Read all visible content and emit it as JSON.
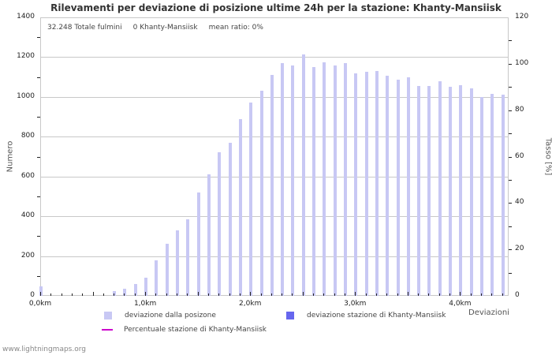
{
  "title": "Rilevamenti per deviazione di posizione ultime 24h per la stazione: Khanty-Mansiisk",
  "info": {
    "total": "32.248 Totale fulmini",
    "station": "0 Khanty-Mansiisk",
    "ratio": "mean ratio: 0%"
  },
  "axes": {
    "left_title": "Numero",
    "right_title": "Tasso [%]",
    "x_title": "Deviazioni",
    "left_ticks": [
      "0",
      "200",
      "400",
      "600",
      "800",
      "1000",
      "1200",
      "1400"
    ],
    "right_ticks": [
      "0",
      "20",
      "40",
      "60",
      "80",
      "100",
      "120"
    ],
    "x_ticks": [
      "0,0km",
      "1,0km",
      "2,0km",
      "3,0km",
      "4,0km"
    ]
  },
  "legend": {
    "item1": "deviazione dalla posizone",
    "item2": "deviazione stazione di Khanty-Mansiisk",
    "item3": "Percentuale stazione di Khanty-Mansiisk",
    "colors": {
      "item1": "#c8c8f4",
      "item2": "#6666ee",
      "item3": "#cc00cc"
    }
  },
  "footer": "www.lightningmaps.org",
  "chart_data": {
    "type": "bar",
    "title": "Rilevamenti per deviazione di posizione ultime 24h per la stazione: Khanty-Mansiisk",
    "xlabel": "Deviazioni",
    "ylabel": "Numero",
    "y2label": "Tasso [%]",
    "ylim": [
      0,
      1400
    ],
    "y2lim": [
      0,
      120
    ],
    "grid": true,
    "legend_position": "bottom",
    "categories": [
      "0.0",
      "0.1",
      "0.2",
      "0.3",
      "0.4",
      "0.5",
      "0.6",
      "0.7",
      "0.8",
      "0.9",
      "1.0",
      "1.1",
      "1.2",
      "1.3",
      "1.4",
      "1.5",
      "1.6",
      "1.7",
      "1.8",
      "1.9",
      "2.0",
      "2.1",
      "2.2",
      "2.3",
      "2.4",
      "2.5",
      "2.6",
      "2.7",
      "2.8",
      "2.9",
      "3.0",
      "3.1",
      "3.2",
      "3.3",
      "3.4",
      "3.5",
      "3.6",
      "3.7",
      "3.8",
      "3.9",
      "4.0",
      "4.1",
      "4.2",
      "4.3",
      "4.4"
    ],
    "series": [
      {
        "name": "deviazione dalla posizone",
        "values": [
          48,
          0,
          0,
          0,
          0,
          0,
          0,
          24,
          36,
          60,
          92,
          180,
          260,
          330,
          385,
          520,
          610,
          720,
          770,
          890,
          970,
          1030,
          1110,
          1170,
          1160,
          1215,
          1150,
          1175,
          1160,
          1170,
          1120,
          1125,
          1130,
          1105,
          1085,
          1100,
          1055,
          1055,
          1080,
          1050,
          1060,
          1045,
          1000,
          1015,
          1010
        ]
      },
      {
        "name": "deviazione stazione di Khanty-Mansiisk",
        "values": [
          0,
          0,
          0,
          0,
          0,
          0,
          0,
          0,
          0,
          0,
          0,
          0,
          0,
          0,
          0,
          0,
          0,
          0,
          0,
          0,
          0,
          0,
          0,
          0,
          0,
          0,
          0,
          0,
          0,
          0,
          0,
          0,
          0,
          0,
          0,
          0,
          0,
          0,
          0,
          0,
          0,
          0,
          0,
          0,
          0
        ]
      },
      {
        "name": "Percentuale stazione di Khanty-Mansiisk",
        "values": [
          0,
          0,
          0,
          0,
          0,
          0,
          0,
          0,
          0,
          0,
          0,
          0,
          0,
          0,
          0,
          0,
          0,
          0,
          0,
          0,
          0,
          0,
          0,
          0,
          0,
          0,
          0,
          0,
          0,
          0,
          0,
          0,
          0,
          0,
          0,
          0,
          0,
          0,
          0,
          0,
          0,
          0,
          0,
          0,
          0
        ]
      }
    ]
  }
}
